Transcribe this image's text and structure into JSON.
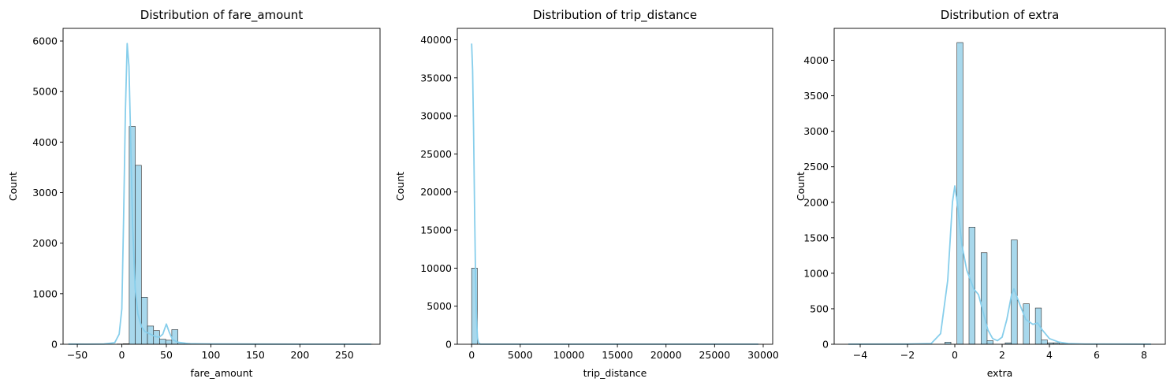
{
  "chart_data": [
    {
      "type": "histogram",
      "title": "Distribution of fare_amount",
      "xlabel": "fare_amount",
      "ylabel": "Count",
      "xlim": [
        -66,
        290
      ],
      "ylim": [
        0,
        6250
      ],
      "xticks": [
        -50,
        0,
        50,
        100,
        150,
        200,
        250
      ],
      "yticks": [
        0,
        1000,
        2000,
        3000,
        4000,
        5000,
        6000
      ],
      "bin_start": -60,
      "bin_width": 6.83,
      "counts": [
        2,
        0,
        0,
        0,
        0,
        0,
        0,
        0,
        5,
        10,
        4310,
        3540,
        930,
        360,
        270,
        100,
        80,
        290,
        30,
        20,
        8,
        5,
        4,
        3,
        3,
        2,
        2,
        1,
        1,
        1,
        1,
        1,
        1,
        1,
        1,
        1,
        1,
        1,
        1,
        1,
        1,
        1,
        1,
        1,
        1,
        1,
        1,
        1,
        1,
        1
      ],
      "kde": [
        [
          -60,
          3
        ],
        [
          -40,
          2
        ],
        [
          -20,
          5
        ],
        [
          -8,
          30
        ],
        [
          -3,
          200
        ],
        [
          0,
          700
        ],
        [
          2,
          2500
        ],
        [
          4,
          4600
        ],
        [
          6,
          5950
        ],
        [
          8,
          5500
        ],
        [
          10,
          4000
        ],
        [
          12,
          2400
        ],
        [
          15,
          1100
        ],
        [
          18,
          600
        ],
        [
          22,
          350
        ],
        [
          26,
          250
        ],
        [
          32,
          200
        ],
        [
          38,
          150
        ],
        [
          42,
          140
        ],
        [
          46,
          200
        ],
        [
          50,
          400
        ],
        [
          53,
          250
        ],
        [
          57,
          90
        ],
        [
          63,
          40
        ],
        [
          75,
          12
        ],
        [
          100,
          5
        ],
        [
          150,
          3
        ],
        [
          200,
          2
        ],
        [
          280,
          2
        ]
      ]
    },
    {
      "type": "histogram",
      "title": "Distribution of trip_distance",
      "xlabel": "trip_distance",
      "ylabel": "Count",
      "xlim": [
        -1475,
        30975
      ],
      "ylim": [
        0,
        41500
      ],
      "xticks": [
        0,
        5000,
        10000,
        15000,
        20000,
        25000,
        30000
      ],
      "yticks": [
        0,
        5000,
        10000,
        15000,
        20000,
        25000,
        30000,
        35000,
        40000
      ],
      "bin_start": 0,
      "bin_width": 590,
      "counts": [
        10000,
        5,
        1,
        0,
        0,
        0,
        0,
        0,
        0,
        0,
        0,
        0,
        0,
        0,
        0,
        0,
        0,
        0,
        0,
        0,
        0,
        0,
        0,
        0,
        0,
        0,
        0,
        0,
        0,
        0,
        0,
        0,
        0,
        0,
        0,
        0,
        0,
        0,
        0,
        0,
        0,
        0,
        0,
        0,
        0,
        0,
        0,
        0,
        0,
        1
      ],
      "kde": [
        [
          0,
          39500
        ],
        [
          100,
          36000
        ],
        [
          200,
          28000
        ],
        [
          300,
          18000
        ],
        [
          400,
          9000
        ],
        [
          500,
          3500
        ],
        [
          600,
          900
        ],
        [
          700,
          200
        ],
        [
          900,
          20
        ],
        [
          1500,
          10
        ],
        [
          29500,
          10
        ]
      ]
    },
    {
      "type": "histogram",
      "title": "Distribution of extra",
      "xlabel": "extra",
      "ylabel": "Count",
      "xlim": [
        -5.1,
        8.9
      ],
      "ylim": [
        0,
        4450
      ],
      "xticks": [
        -4,
        -2,
        0,
        2,
        4,
        6,
        8
      ],
      "yticks": [
        0,
        500,
        1000,
        1500,
        2000,
        2500,
        3000,
        3500,
        4000
      ],
      "bin_start": -4.5,
      "bin_width": 0.255,
      "counts": [
        1,
        0,
        0,
        0,
        0,
        0,
        0,
        0,
        0,
        0,
        0,
        0,
        0,
        0,
        0,
        0,
        30,
        0,
        4250,
        0,
        1650,
        0,
        1290,
        50,
        0,
        0,
        20,
        1470,
        0,
        570,
        0,
        510,
        60,
        20,
        20,
        5,
        3,
        2,
        1,
        1,
        1,
        1,
        1,
        1,
        1,
        1,
        1,
        1,
        1,
        5
      ],
      "kde": [
        [
          -4.5,
          1
        ],
        [
          -2,
          2
        ],
        [
          -1,
          10
        ],
        [
          -0.6,
          150
        ],
        [
          -0.3,
          900
        ],
        [
          -0.1,
          2000
        ],
        [
          0,
          2230
        ],
        [
          0.1,
          2000
        ],
        [
          0.3,
          1400
        ],
        [
          0.5,
          1050
        ],
        [
          0.8,
          780
        ],
        [
          1.0,
          700
        ],
        [
          1.2,
          450
        ],
        [
          1.4,
          200
        ],
        [
          1.6,
          80
        ],
        [
          1.8,
          50
        ],
        [
          2.0,
          100
        ],
        [
          2.2,
          350
        ],
        [
          2.4,
          700
        ],
        [
          2.5,
          780
        ],
        [
          2.7,
          600
        ],
        [
          3.0,
          350
        ],
        [
          3.3,
          280
        ],
        [
          3.5,
          300
        ],
        [
          3.7,
          200
        ],
        [
          4.0,
          80
        ],
        [
          4.4,
          30
        ],
        [
          4.8,
          10
        ],
        [
          5.5,
          3
        ],
        [
          8.3,
          1
        ]
      ]
    }
  ]
}
